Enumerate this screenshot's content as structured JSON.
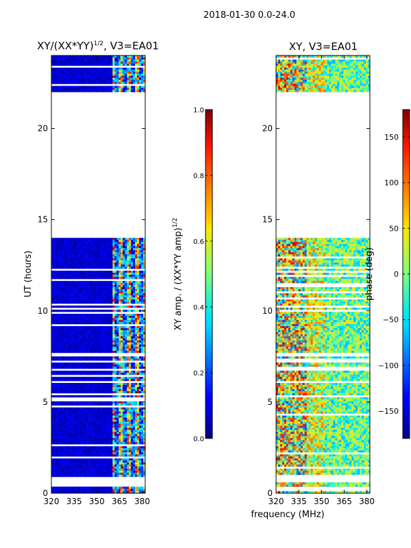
{
  "figure": {
    "suptitle": "2018-01-30 0.0-24.0",
    "xlabel": "frequency (MHz)"
  },
  "chart_data": [
    {
      "type": "heatmap",
      "title_main": "XY/(XX*YY)",
      "title_sup": "1/2",
      "title_rest": ", V3=EA01",
      "ylabel": "UT (hours)",
      "xlim": [
        320,
        382
      ],
      "ylim": [
        0,
        24
      ],
      "xticks": [
        320,
        335,
        350,
        365,
        380
      ],
      "yticks": [
        0,
        5,
        10,
        15,
        20
      ],
      "data_blocks_hours": [
        [
          0.0,
          0.6
        ],
        [
          0.9,
          7.5
        ],
        [
          7.7,
          14.0
        ],
        [
          22.0,
          24.0
        ]
      ],
      "colorbar": {
        "label": "XY amp. / (XX*YY amp)",
        "label_sup": "1/2",
        "range": [
          0.0,
          1.0
        ],
        "ticks": [
          "0.0",
          "0.2",
          "0.4",
          "0.6",
          "0.8",
          "1.0"
        ],
        "tick_values": [
          0.0,
          0.2,
          0.4,
          0.6,
          0.8,
          1.0
        ]
      }
    },
    {
      "type": "heatmap",
      "title": "XY, V3=EA01",
      "xlim": [
        320,
        382
      ],
      "ylim": [
        0,
        24
      ],
      "xticks": [
        320,
        335,
        350,
        365,
        380
      ],
      "yticks": [
        0,
        5,
        10,
        15,
        20
      ],
      "data_blocks_hours": [
        [
          0.0,
          0.6
        ],
        [
          0.9,
          7.5
        ],
        [
          7.7,
          14.0
        ],
        [
          22.0,
          24.0
        ]
      ],
      "colorbar": {
        "label": "phase (deg)",
        "range": [
          -180,
          180
        ],
        "ticks": [
          "150",
          "100",
          "50",
          "0",
          "−50",
          "−100",
          "−150"
        ],
        "tick_values": [
          150,
          100,
          50,
          0,
          -50,
          -100,
          -150
        ]
      }
    }
  ]
}
